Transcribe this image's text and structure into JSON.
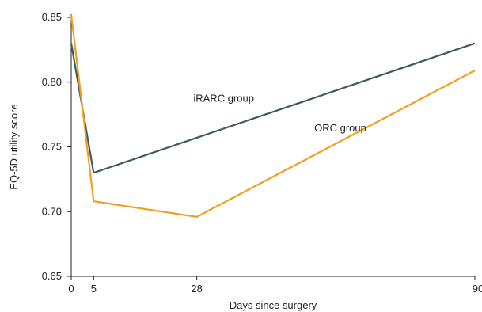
{
  "chart_data": {
    "type": "line",
    "title": "",
    "xlabel": "Days since surgery",
    "ylabel": "EQ-5D utility score",
    "xlim": [
      0,
      90
    ],
    "ylim": [
      0.65,
      0.85
    ],
    "x_ticks": [
      0,
      5,
      28,
      90
    ],
    "x_tick_labels": [
      "0",
      "5",
      "28",
      "90"
    ],
    "y_ticks": [
      0.65,
      0.7,
      0.75,
      0.8,
      0.85
    ],
    "y_tick_labels": [
      "0.65",
      "0.70",
      "0.75",
      "0.80",
      "0.85"
    ],
    "grid": false,
    "legend": "none",
    "series": [
      {
        "name": "iRARC group",
        "color": "#3d5a63",
        "x": [
          0,
          5,
          90
        ],
        "y": [
          0.83,
          0.73,
          0.83
        ]
      },
      {
        "name": "ORC group",
        "color": "#f0a020",
        "x": [
          0,
          5,
          28,
          90
        ],
        "y": [
          0.852,
          0.708,
          0.696,
          0.809
        ]
      }
    ],
    "annotations": [
      {
        "text": "iRARC group",
        "series": 0,
        "x": 34,
        "y": 0.785
      },
      {
        "text": "ORC group",
        "series": 1,
        "x": 60,
        "y": 0.762
      }
    ]
  }
}
